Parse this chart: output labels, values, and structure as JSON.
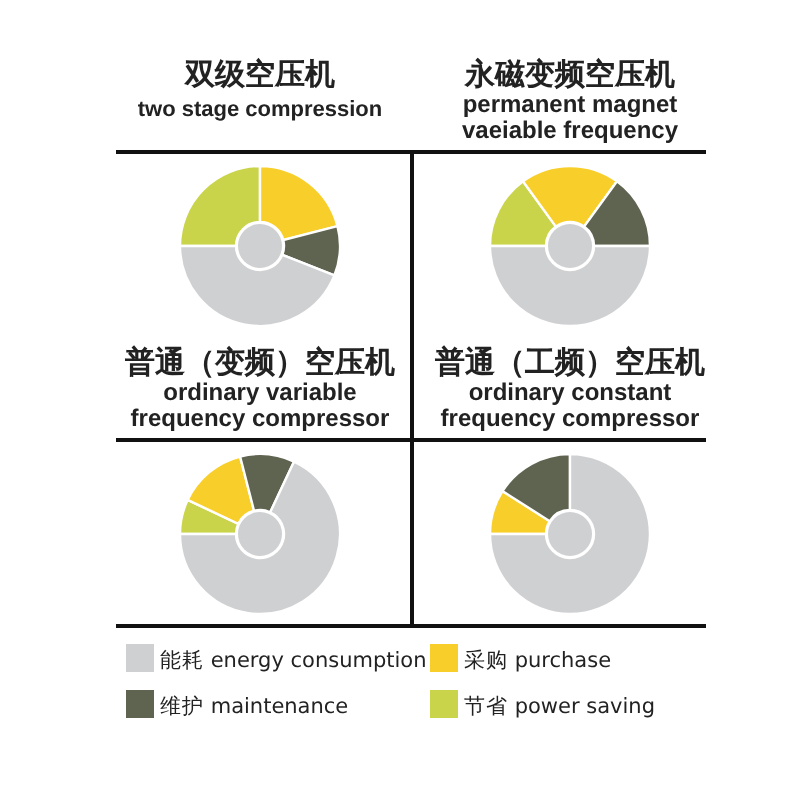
{
  "chart_data": [
    {
      "type": "donut",
      "title": "双级空压机",
      "subtitle": "two stage compression",
      "categories": [
        "节省 power saving",
        "采购 purchase",
        "维护 maintenance",
        "能耗 energy consumption"
      ],
      "values": [
        25,
        21,
        10,
        44
      ],
      "colors": [
        "#c9d44a",
        "#f8cf2a",
        "#5f6450",
        "#cfd0d2"
      ],
      "legend": "bottom"
    },
    {
      "type": "donut",
      "title": "永磁变频空压机",
      "subtitle": "permanent magnet\nvaeiable frequency",
      "categories": [
        null,
        null,
        null,
        null
      ],
      "values": [
        15,
        20,
        15,
        50
      ],
      "colors": [
        "#c9d44a",
        "#f8cf2a",
        "#5f6450",
        "#cfd0d2"
      ]
    },
    {
      "type": "donut",
      "title": "普通（变频）空压机",
      "subtitle": "ordinary variable\nfrequency compressor",
      "categories": [
        null,
        null,
        null,
        null
      ],
      "values": [
        7,
        14,
        11,
        68
      ],
      "colors": [
        "#c9d44a",
        "#f8cf2a",
        "#5f6450",
        "#cfd0d2"
      ]
    },
    {
      "type": "donut",
      "title": "普通（工频）空压机",
      "subtitle": "ordinary constant\nfrequency compressor",
      "categories": [
        null,
        null,
        null
      ],
      "values": [
        9,
        16,
        75
      ],
      "colors": [
        "#f8cf2a",
        "#5f6450",
        "#cfd0d2"
      ]
    }
  ]
}
